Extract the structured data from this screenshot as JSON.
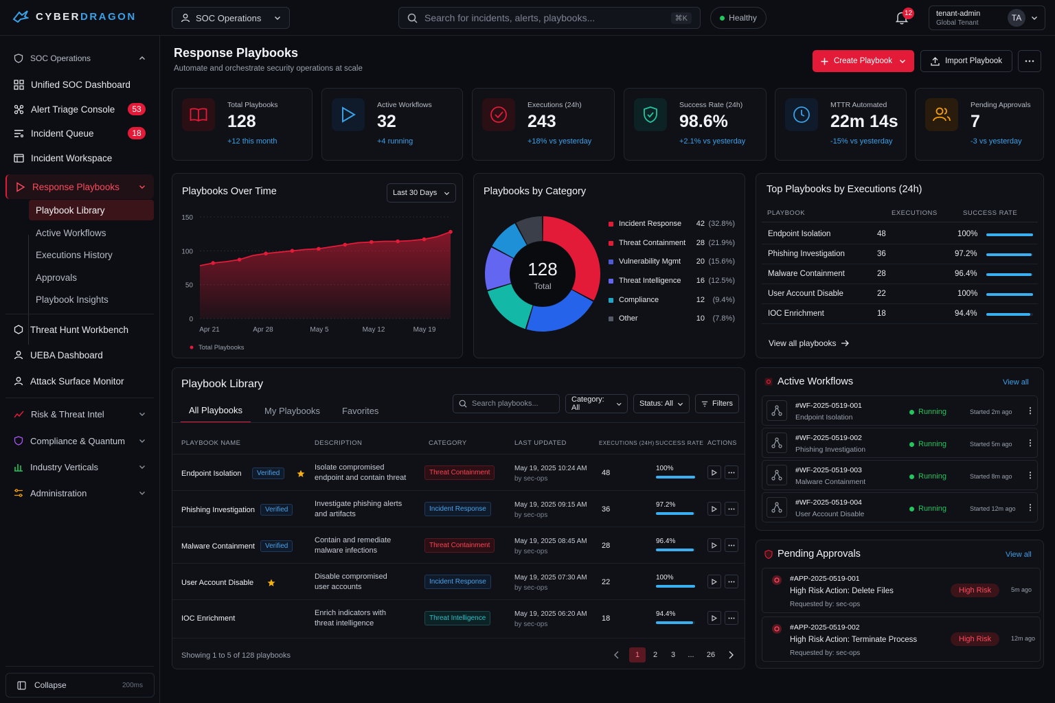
{
  "app": {
    "brand_a": "CYBER",
    "brand_b": "DRAGON"
  },
  "topbar": {
    "workspace": "SOC Operations",
    "search_placeholder": "Search for incidents, alerts, playbooks...",
    "shortcut": "⌘K",
    "health": "Healthy",
    "notif_count": "12",
    "user": "tenant-admin",
    "tenant": "Global Tenant",
    "avatar": "TA"
  },
  "sidebar": {
    "group": "SOC Operations",
    "items": [
      {
        "label": "Unified SOC Dashboard"
      },
      {
        "label": "Alert Triage Console",
        "badge": "53"
      },
      {
        "label": "Incident Queue",
        "badge": "18"
      },
      {
        "label": "Incident Workspace"
      },
      {
        "label": "Response Playbooks"
      }
    ],
    "subitems": [
      "Playbook Library",
      "Active Workflows",
      "Executions History",
      "Approvals",
      "Playbook Insights"
    ],
    "items2": [
      "Threat Hunt Workbench",
      "UEBA Dashboard",
      "Attack Surface Monitor"
    ],
    "sections": [
      "Risk & Threat Intel",
      "Compliance & Quantum",
      "Industry Verticals",
      "Administration"
    ],
    "collapse": "Collapse",
    "latency": "200ms"
  },
  "page": {
    "title": "Response Playbooks",
    "subtitle": "Automate and orchestrate security operations at scale",
    "create": "Create Playbook",
    "import": "Import Playbook"
  },
  "stats": [
    {
      "label": "Total Playbooks",
      "value": "128",
      "change": "+12 this month",
      "color": "#3aa0e8"
    },
    {
      "label": "Active Workflows",
      "value": "32",
      "change": "+4 running",
      "color": "#3aa0e8"
    },
    {
      "label": "Executions (24h)",
      "value": "243",
      "change": "+18% vs yesterday",
      "color": "#3aa0e8"
    },
    {
      "label": "Success Rate (24h)",
      "value": "98.6%",
      "change": "+2.1% vs yesterday",
      "color": "#3aa0e8"
    },
    {
      "label": "MTTR Automated",
      "value": "22m 14s",
      "change": "-15% vs yesterday",
      "color": "#3aa0e8"
    },
    {
      "label": "Pending Approvals",
      "value": "7",
      "change": "-3 vs yesterday",
      "color": "#3aa0e8"
    }
  ],
  "chart_data": [
    {
      "type": "area",
      "title": "Playbooks Over Time",
      "range": "Last 30 Days",
      "x_ticks": [
        "Apr 21",
        "Apr 28",
        "May 5",
        "May 12",
        "May 19"
      ],
      "y_ticks": [
        "150",
        "100",
        "50",
        "0"
      ],
      "ylim": [
        0,
        150
      ],
      "series": [
        {
          "name": "Total Playbooks",
          "color": "#e31b38",
          "values": [
            78,
            82,
            84,
            87,
            93,
            96,
            98,
            100,
            102,
            103,
            106,
            109,
            112,
            113,
            114,
            114,
            115,
            117,
            121,
            128
          ]
        }
      ]
    },
    {
      "type": "pie",
      "title": "Playbooks by Category",
      "center_value": "128",
      "center_label": "Total",
      "slices": [
        {
          "label": "Incident Response",
          "value": 42,
          "pct": "(32.8%)",
          "color": "#e31b38"
        },
        {
          "label": "Threat Containment",
          "value": 28,
          "pct": "(21.9%)",
          "color": "#2563eb"
        },
        {
          "label": "Vulnerability Mgmt",
          "value": 20,
          "pct": "(15.6%)",
          "color": "#14b8a6"
        },
        {
          "label": "Threat Intelligence",
          "value": 16,
          "pct": "(12.5%)",
          "color": "#6366f1"
        },
        {
          "label": "Compliance",
          "value": 12,
          "pct": "(9.4%)",
          "color": "#1e90d8"
        },
        {
          "label": "Other",
          "value": 10,
          "pct": "(7.8%)",
          "color": "#3a3f4a"
        }
      ],
      "legend_colors": [
        "#e31b38",
        "#e31b38",
        "#4f5bd5",
        "#6366f1",
        "#1ea7c8",
        "#555b66"
      ]
    }
  ],
  "top": {
    "title": "Top Playbooks by Executions (24h)",
    "h_name": "PLAYBOOK",
    "h_exec": "EXECUTIONS",
    "h_rate": "SUCCESS RATE",
    "rows": [
      {
        "name": "Endpoint Isolation",
        "exec": "48",
        "rate": "100%",
        "frac": 1.0
      },
      {
        "name": "Phishing Investigation",
        "exec": "36",
        "rate": "97.2%",
        "frac": 0.972
      },
      {
        "name": "Malware Containment",
        "exec": "28",
        "rate": "96.4%",
        "frac": 0.964
      },
      {
        "name": "User Account Disable",
        "exec": "22",
        "rate": "100%",
        "frac": 1.0
      },
      {
        "name": "IOC Enrichment",
        "exec": "18",
        "rate": "94.4%",
        "frac": 0.944
      }
    ],
    "view_all": "View all playbooks"
  },
  "library": {
    "title": "Playbook Library",
    "tabs": [
      "All Playbooks",
      "My Playbooks",
      "Favorites"
    ],
    "search_placeholder": "Search playbooks...",
    "category": "Category: All",
    "status": "Status: All",
    "filters": "Filters",
    "headers": [
      "PLAYBOOK NAME",
      "DESCRIPTION",
      "CATEGORY",
      "LAST UPDATED",
      "EXECUTIONS (24H)",
      "SUCCESS RATE",
      "ACTIONS"
    ],
    "rows": [
      {
        "name": "Endpoint Isolation",
        "verified": "Verified",
        "star": true,
        "desc1": "Isolate compromised",
        "desc2": "endpoint and contain threat",
        "cat": "Threat Containment",
        "catc": "red",
        "date": "May 19, 2025 10:24 AM",
        "by": "by sec-ops",
        "exec": "48",
        "rate": "100%",
        "frac": 1.0
      },
      {
        "name": "Phishing Investigation",
        "verified": "Verified",
        "star": false,
        "desc1": "Investigate phishing alerts",
        "desc2": "and artifacts",
        "cat": "Incident Response",
        "catc": "blue",
        "date": "May 19, 2025 09:15 AM",
        "by": "by sec-ops",
        "exec": "36",
        "rate": "97.2%",
        "frac": 0.972
      },
      {
        "name": "Malware Containment",
        "verified": "Verified",
        "star": false,
        "desc1": "Contain and remediate",
        "desc2": "malware infections",
        "cat": "Threat Containment",
        "catc": "red",
        "date": "May 19, 2025 08:45 AM",
        "by": "by sec-ops",
        "exec": "28",
        "rate": "96.4%",
        "frac": 0.964
      },
      {
        "name": "User Account Disable",
        "verified": "",
        "star": true,
        "desc1": "Disable compromised",
        "desc2": "user accounts",
        "cat": "Incident Response",
        "catc": "blue",
        "date": "May 19, 2025 07:30 AM",
        "by": "by sec-ops",
        "exec": "22",
        "rate": "100%",
        "frac": 1.0
      },
      {
        "name": "IOC Enrichment",
        "verified": "",
        "star": false,
        "desc1": "Enrich indicators with",
        "desc2": "threat intelligence",
        "cat": "Threat Intelligence",
        "catc": "teal",
        "date": "May 19, 2025 06:20 AM",
        "by": "by sec-ops",
        "exec": "18",
        "rate": "94.4%",
        "frac": 0.944
      }
    ],
    "showing": "Showing 1 to 5 of 128 playbooks",
    "pages": [
      "1",
      "2",
      "3",
      "...",
      "26"
    ]
  },
  "workflows": {
    "title": "Active Workflows",
    "view_all": "View all",
    "items": [
      {
        "id": "#WF-2025-0519-001",
        "name": "Endpoint Isolation",
        "status": "Running",
        "started": "Started 2m ago"
      },
      {
        "id": "#WF-2025-0519-002",
        "name": "Phishing Investigation",
        "status": "Running",
        "started": "Started 5m ago"
      },
      {
        "id": "#WF-2025-0519-003",
        "name": "Malware Containment",
        "status": "Running",
        "started": "Started 8m ago"
      },
      {
        "id": "#WF-2025-0519-004",
        "name": "User Account Disable",
        "status": "Running",
        "started": "Started 12m ago"
      }
    ]
  },
  "approvals": {
    "title": "Pending Approvals",
    "view_all": "View all",
    "items": [
      {
        "id": "#APP-2025-0519-001",
        "title": "High Risk Action: Delete Files",
        "by": "Requested by: sec-ops",
        "risk": "High Risk",
        "time": "5m ago"
      },
      {
        "id": "#APP-2025-0519-002",
        "title": "High Risk Action: Terminate Process",
        "by": "Requested by: sec-ops",
        "risk": "High Risk",
        "time": "12m ago"
      }
    ]
  }
}
